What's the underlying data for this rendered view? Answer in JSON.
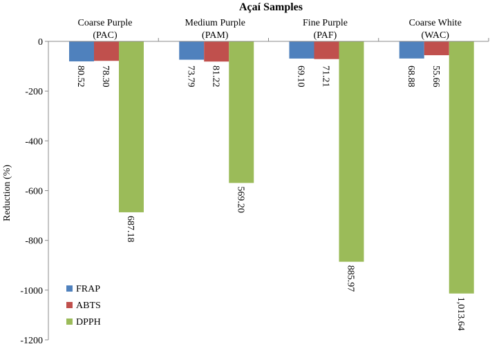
{
  "chart_data": {
    "type": "bar",
    "title": "Açaí Samples",
    "xlabel": "",
    "ylabel": "Reduction (%)",
    "ylim": [
      -1200,
      0
    ],
    "yticks": [
      0,
      -200,
      -400,
      -600,
      -800,
      -1000,
      -1200
    ],
    "grid": false,
    "legend_position": "bottom-left",
    "categories": [
      [
        "Coarse Purple",
        "(PAC)"
      ],
      [
        "Medium Purple",
        "(PAM)"
      ],
      [
        "Fine Purple",
        "(PAF)"
      ],
      [
        "Coarse White",
        "(WAC)"
      ]
    ],
    "series": [
      {
        "name": "FRAP",
        "color": "#4F81BD",
        "values": [
          -80.52,
          -73.79,
          -69.1,
          -68.88
        ],
        "labels": [
          "80.52",
          "73.79",
          "69.10",
          "68.88"
        ]
      },
      {
        "name": "ABTS",
        "color": "#C0504D",
        "values": [
          -78.3,
          -81.22,
          -71.21,
          -55.66
        ],
        "labels": [
          "78.30",
          "81.22",
          "71.21",
          "55.66"
        ]
      },
      {
        "name": "DPPH",
        "color": "#9BBB59",
        "values": [
          -687.18,
          -569.2,
          -885.97,
          -1013.64
        ],
        "labels": [
          "687.18",
          "569.20",
          "885.97",
          "1,013.64"
        ]
      }
    ]
  }
}
